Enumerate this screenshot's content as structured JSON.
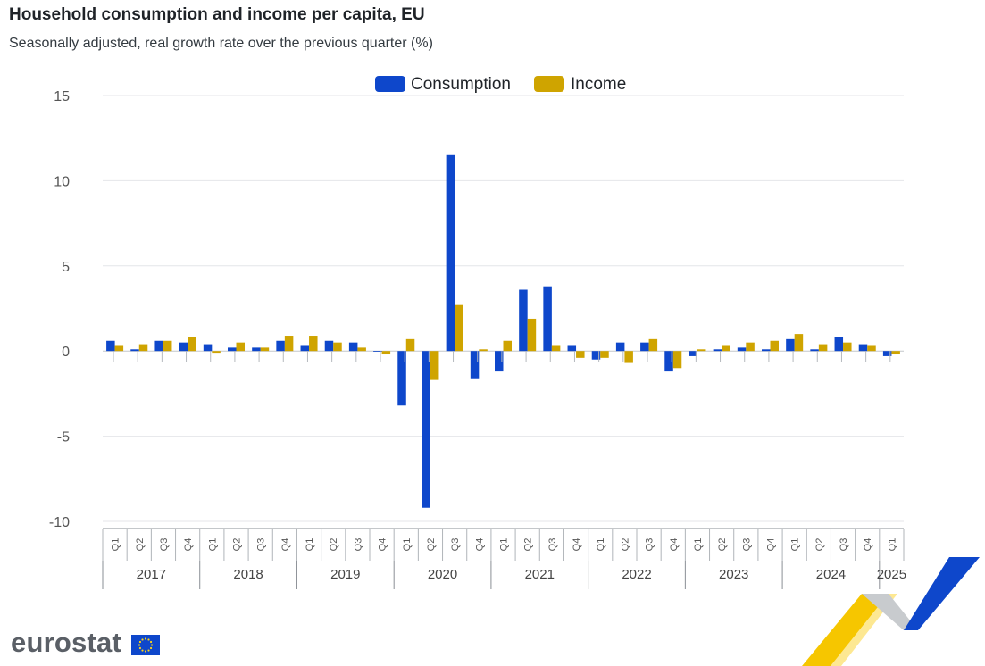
{
  "header": {
    "title": "Household consumption and income per capita, EU",
    "subtitle": "Seasonally adjusted, real growth rate over the previous quarter (%)"
  },
  "branding": {
    "name": "eurostat",
    "logo_icon": "eu-flag-icon"
  },
  "colors": {
    "consumption": "#0e47cb",
    "income": "#cfa400"
  },
  "chart_data": {
    "type": "bar",
    "ylim": [
      -10,
      15
    ],
    "yticks": [
      15,
      10,
      5,
      0,
      -5,
      -10
    ],
    "grid": true,
    "legend_position": "top-center",
    "years": [
      {
        "label": "2017",
        "quarters": 4
      },
      {
        "label": "2018",
        "quarters": 4
      },
      {
        "label": "2019",
        "quarters": 4
      },
      {
        "label": "2020",
        "quarters": 4
      },
      {
        "label": "2021",
        "quarters": 4
      },
      {
        "label": "2022",
        "quarters": 4
      },
      {
        "label": "2023",
        "quarters": 4
      },
      {
        "label": "2024",
        "quarters": 4
      },
      {
        "label": "2025",
        "quarters": 1
      }
    ],
    "categories": [
      "Q1",
      "Q2",
      "Q3",
      "Q4",
      "Q1",
      "Q2",
      "Q3",
      "Q4",
      "Q1",
      "Q2",
      "Q3",
      "Q4",
      "Q1",
      "Q2",
      "Q3",
      "Q4",
      "Q1",
      "Q2",
      "Q3",
      "Q4",
      "Q1",
      "Q2",
      "Q3",
      "Q4",
      "Q1",
      "Q2",
      "Q3",
      "Q4",
      "Q1",
      "Q2",
      "Q3",
      "Q4",
      "Q1"
    ],
    "series": [
      {
        "name": "Consumption",
        "values": [
          0.6,
          0.1,
          0.6,
          0.5,
          0.4,
          0.2,
          0.2,
          0.6,
          0.3,
          0.6,
          0.5,
          0.0,
          -3.2,
          -9.2,
          11.5,
          -1.6,
          -1.2,
          3.6,
          3.8,
          0.3,
          -0.5,
          0.5,
          0.5,
          -1.2,
          -0.3,
          0.1,
          0.2,
          0.1,
          0.7,
          0.1,
          0.8,
          0.4,
          -0.3
        ]
      },
      {
        "name": "Income",
        "values": [
          0.3,
          0.4,
          0.6,
          0.8,
          -0.1,
          0.5,
          0.2,
          0.9,
          0.9,
          0.5,
          0.2,
          -0.2,
          0.7,
          -1.7,
          2.7,
          0.1,
          0.6,
          1.9,
          0.3,
          -0.4,
          -0.4,
          -0.7,
          0.7,
          -1.0,
          0.1,
          0.3,
          0.5,
          0.6,
          1.0,
          0.4,
          0.5,
          0.3,
          -0.2
        ]
      }
    ]
  }
}
